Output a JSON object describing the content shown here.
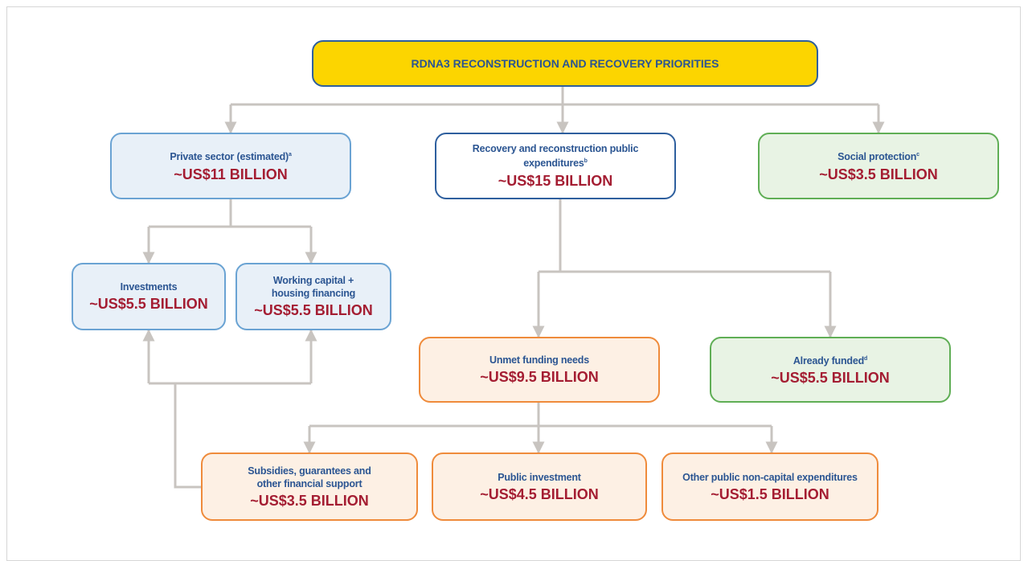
{
  "title": "RDNA3 RECONSTRUCTION AND RECOVERY PRIORITIES",
  "nodes": [
    {
      "label": [
        "Private sector (estimated)"
      ],
      "note": "a",
      "value": "~US$11 BILLION"
    },
    {
      "label": [
        "Recovery and reconstruction public",
        "expenditures"
      ],
      "note": "b",
      "value": "~US$15 BILLION"
    },
    {
      "label": [
        "Social protection"
      ],
      "note": "c",
      "value": "~US$3.5 BILLION"
    },
    {
      "label": [
        "Investments"
      ],
      "value": "~US$5.5 BILLION"
    },
    {
      "label": [
        "Working capital +",
        "housing financing"
      ],
      "value": "~US$5.5 BILLION"
    },
    {
      "label": [
        "Unmet funding needs"
      ],
      "value": "~US$9.5 BILLION"
    },
    {
      "label": [
        "Already funded"
      ],
      "note": "d",
      "value": "~US$5.5 BILLION"
    },
    {
      "label": [
        "Subsidies, guarantees and",
        "other financial support"
      ],
      "value": "~US$3.5 BILLION"
    },
    {
      "label": [
        "Public investment"
      ],
      "value": "~US$4.5 BILLION"
    },
    {
      "label": [
        "Other public non-capital expenditures"
      ],
      "value": "~US$1.5 BILLION"
    }
  ]
}
